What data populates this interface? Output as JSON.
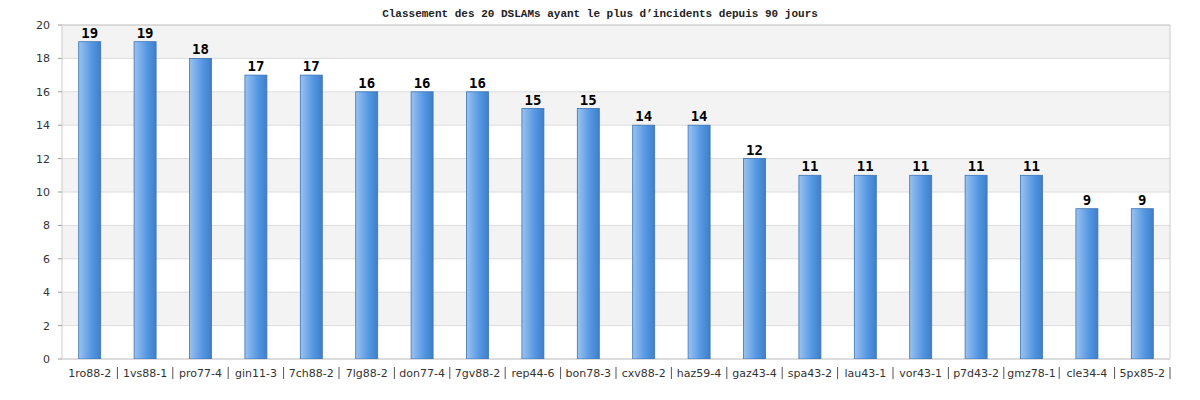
{
  "chart_data": {
    "type": "bar",
    "title": "Classement des 20 DSLAMs ayant le plus d’incidents depuis 90 jours",
    "categories": [
      "1ro88-2",
      "1vs88-1",
      "pro77-4",
      "gin11-3",
      "7ch88-2",
      "7lg88-2",
      "don77-4",
      "7gv88-2",
      "rep44-6",
      "bon78-3",
      "cxv88-2",
      "haz59-4",
      "gaz43-4",
      "spa43-2",
      "lau43-1",
      "vor43-1",
      "p7d43-2",
      "gmz78-1",
      "cle34-4",
      "5px85-2"
    ],
    "values": [
      19,
      19,
      18,
      17,
      17,
      16,
      16,
      16,
      15,
      15,
      14,
      14,
      12,
      11,
      11,
      11,
      11,
      11,
      9,
      9
    ],
    "color": "#4a90e2",
    "ylim": [
      0,
      20
    ],
    "yticks": [
      0,
      2,
      4,
      6,
      8,
      10,
      12,
      14,
      16,
      18,
      20
    ],
    "grid": true,
    "data_labels": true
  }
}
